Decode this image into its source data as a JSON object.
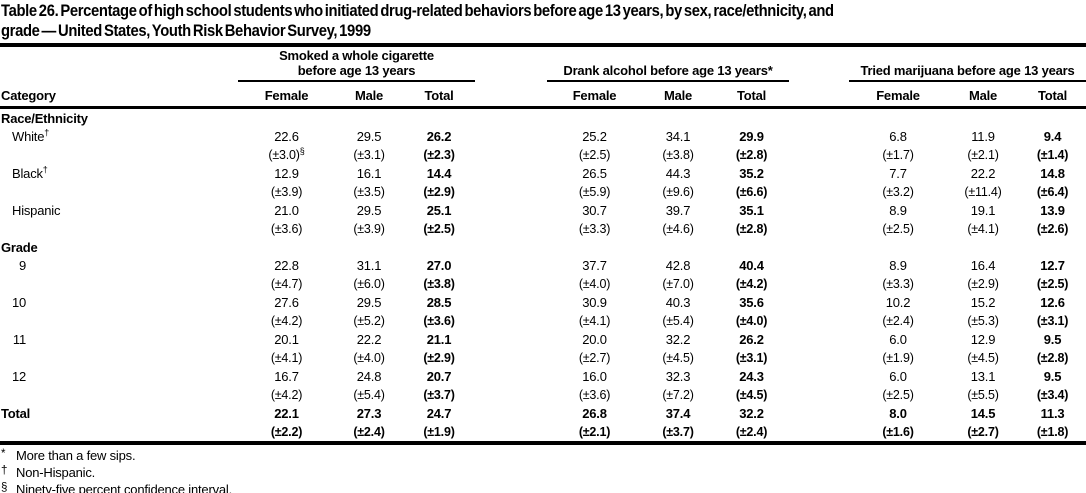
{
  "title": {
    "line1": "Table 26. Percentage of high school students who initiated drug-related behaviors before age 13 years, by sex, race/ethnicity, and",
    "line2": "grade — United States, Youth Risk Behavior Survey, 1999"
  },
  "table": {
    "category_header": "Category",
    "groups": [
      {
        "name": "cigarette",
        "spanner_lines": [
          "Smoked a whole cigarette",
          "before age 13 years"
        ],
        "columns": [
          "Female",
          "Male",
          "Total"
        ]
      },
      {
        "name": "alcohol",
        "spanner_lines": [
          "Drank alcohol before age 13 years*"
        ],
        "columns": [
          "Female",
          "Male",
          "Total"
        ]
      },
      {
        "name": "marijuana",
        "spanner_lines": [
          "Tried marijuana before age 13 years"
        ],
        "columns": [
          "Female",
          "Male",
          "Total"
        ]
      }
    ],
    "sections": [
      {
        "header": "Race/Ethnicity",
        "rows": [
          {
            "label": "White",
            "label_sup": "†",
            "values": [
              "22.6",
              "29.5",
              "26.2",
              "25.2",
              "34.1",
              "29.9",
              "6.8",
              "11.9",
              "9.4"
            ],
            "ci": [
              "(±3.0)§",
              "(±3.1)",
              "(±2.3)",
              "(±2.5)",
              "(±3.8)",
              "(±2.8)",
              "(±1.7)",
              "(±2.1)",
              "(±1.4)"
            ]
          },
          {
            "label": "Black",
            "label_sup": "†",
            "values": [
              "12.9",
              "16.1",
              "14.4",
              "26.5",
              "44.3",
              "35.2",
              "7.7",
              "22.2",
              "14.8"
            ],
            "ci": [
              "(±3.9)",
              "(±3.5)",
              "(±2.9)",
              "(±5.9)",
              "(±9.6)",
              "(±6.6)",
              "(±3.2)",
              "(±11.4)",
              "(±6.4)"
            ]
          },
          {
            "label": "Hispanic",
            "label_sup": "",
            "values": [
              "21.0",
              "29.5",
              "25.1",
              "30.7",
              "39.7",
              "35.1",
              "8.9",
              "19.1",
              "13.9"
            ],
            "ci": [
              "(±3.6)",
              "(±3.9)",
              "(±2.5)",
              "(±3.3)",
              "(±4.6)",
              "(±2.8)",
              "(±2.5)",
              "(±4.1)",
              "(±2.6)"
            ]
          }
        ]
      },
      {
        "header": "Grade",
        "rows": [
          {
            "label": "9",
            "label_sup": "",
            "values": [
              "22.8",
              "31.1",
              "27.0",
              "37.7",
              "42.8",
              "40.4",
              "8.9",
              "16.4",
              "12.7"
            ],
            "ci": [
              "(±4.7)",
              "(±6.0)",
              "(±3.8)",
              "(±4.0)",
              "(±7.0)",
              "(±4.2)",
              "(±3.3)",
              "(±2.9)",
              "(±2.5)"
            ]
          },
          {
            "label": "10",
            "label_sup": "",
            "values": [
              "27.6",
              "29.5",
              "28.5",
              "30.9",
              "40.3",
              "35.6",
              "10.2",
              "15.2",
              "12.6"
            ],
            "ci": [
              "(±4.2)",
              "(±5.2)",
              "(±3.6)",
              "(±4.1)",
              "(±5.4)",
              "(±4.0)",
              "(±2.4)",
              "(±5.3)",
              "(±3.1)"
            ]
          },
          {
            "label": "11",
            "label_sup": "",
            "values": [
              "20.1",
              "22.2",
              "21.1",
              "20.0",
              "32.2",
              "26.2",
              "6.0",
              "12.9",
              "9.5"
            ],
            "ci": [
              "(±4.1)",
              "(±4.0)",
              "(±2.9)",
              "(±2.7)",
              "(±4.5)",
              "(±3.1)",
              "(±1.9)",
              "(±4.5)",
              "(±2.8)"
            ]
          },
          {
            "label": "12",
            "label_sup": "",
            "values": [
              "16.7",
              "24.8",
              "20.7",
              "16.0",
              "32.3",
              "24.3",
              "6.0",
              "13.1",
              "9.5"
            ],
            "ci": [
              "(±4.2)",
              "(±5.4)",
              "(±3.7)",
              "(±3.6)",
              "(±7.2)",
              "(±4.5)",
              "(±2.5)",
              "(±5.5)",
              "(±3.4)"
            ]
          }
        ]
      }
    ],
    "total_row": {
      "label": "Total",
      "label_sup": "",
      "values": [
        "22.1",
        "27.3",
        "24.7",
        "26.8",
        "37.4",
        "32.2",
        "8.0",
        "14.5",
        "11.3"
      ],
      "ci": [
        "(±2.2)",
        "(±2.4)",
        "(±1.9)",
        "(±2.1)",
        "(±3.7)",
        "(±2.4)",
        "(±1.6)",
        "(±2.7)",
        "(±1.8)"
      ]
    }
  },
  "footnotes": [
    {
      "marker": "*",
      "text": "More than a few sips."
    },
    {
      "marker": "†",
      "text": "Non-Hispanic."
    },
    {
      "marker": "§",
      "text": "Ninety-five percent confidence interval."
    }
  ],
  "colors": {
    "ink": "#000000",
    "paper": "#ffffff"
  }
}
